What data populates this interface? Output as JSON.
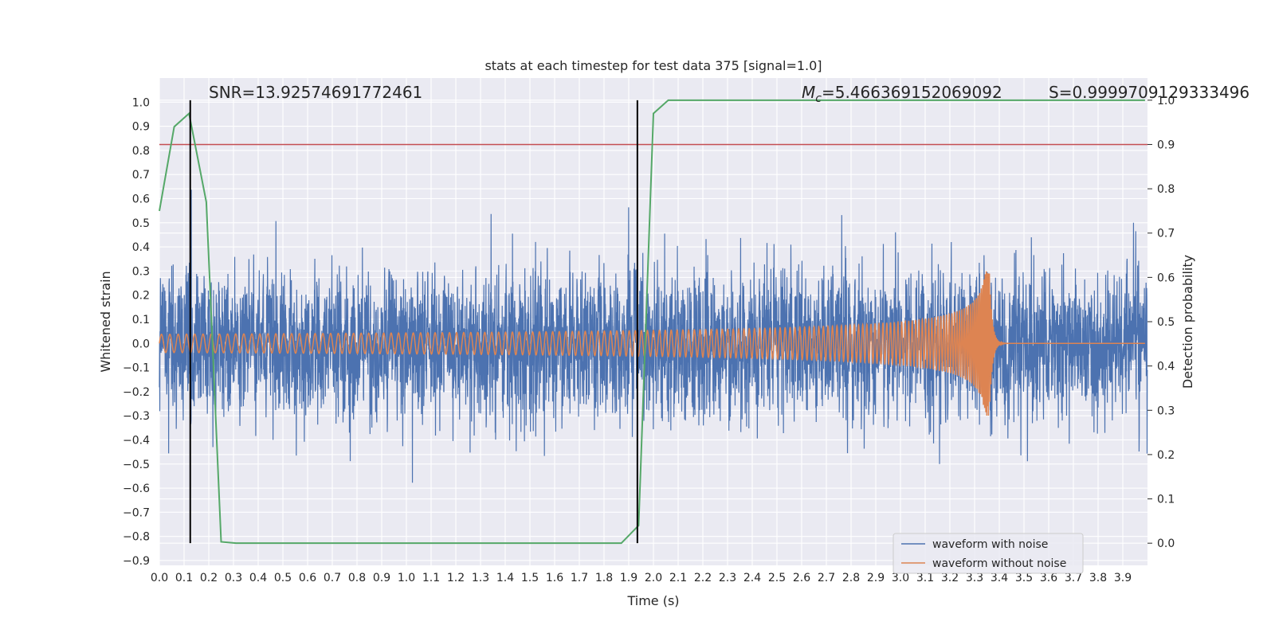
{
  "chart_data": {
    "type": "line",
    "title": "stats at each timestep for test data 375 [signal=1.0]",
    "xlabel": "Time (s)",
    "ylabel_left": "Whitened strain",
    "ylabel_right": "Detection probability",
    "xlim": [
      0.0,
      4.0
    ],
    "ylim_left": [
      -0.92,
      1.1
    ],
    "ylim_right": [
      -0.05,
      1.05
    ],
    "x_ticks": [
      "0.0",
      "0.1",
      "0.2",
      "0.3",
      "0.4",
      "0.5",
      "0.6",
      "0.7",
      "0.8",
      "0.9",
      "1.0",
      "1.1",
      "1.2",
      "1.3",
      "1.4",
      "1.5",
      "1.6",
      "1.7",
      "1.8",
      "1.9",
      "2.0",
      "2.1",
      "2.2",
      "2.3",
      "2.4",
      "2.5",
      "2.6",
      "2.7",
      "2.8",
      "2.9",
      "3.0",
      "3.1",
      "3.2",
      "3.3",
      "3.4",
      "3.5",
      "3.6",
      "3.7",
      "3.8",
      "3.9"
    ],
    "y_left_ticks": [
      "1.0",
      "0.9",
      "0.8",
      "0.7",
      "0.6",
      "0.5",
      "0.4",
      "0.3",
      "0.2",
      "0.1",
      "0.0",
      "−0.1",
      "−0.2",
      "−0.3",
      "−0.4",
      "−0.5",
      "−0.6",
      "−0.7",
      "−0.8",
      "−0.9"
    ],
    "y_right_ticks": [
      "1.0",
      "0.9",
      "0.8",
      "0.7",
      "0.6",
      "0.5",
      "0.4",
      "0.3",
      "0.2",
      "0.1",
      "0.0"
    ],
    "grid": true,
    "legend_position": "lower-right",
    "series": [
      {
        "name": "waveform with noise",
        "color": "#4c72b0",
        "axis": "left",
        "kind": "noise",
        "amplitude_envelope": 0.38,
        "duration": 4.0
      },
      {
        "name": "waveform without noise",
        "color": "#dd8452",
        "axis": "left",
        "kind": "chirp",
        "start_amplitude": 0.038,
        "peak_amplitude": 0.3,
        "merger_time": 3.36,
        "start_frequency": 30
      },
      {
        "name": "",
        "color": "#55a868",
        "axis": "right",
        "kind": "probability",
        "x": [
          0.0,
          0.06,
          0.12,
          0.19,
          0.25,
          0.31,
          1.87,
          1.94,
          2.0,
          2.06,
          3.99
        ],
        "y": [
          0.75,
          0.94,
          0.97,
          0.77,
          0.003,
          0.0,
          0.0,
          0.04,
          0.97,
          1.0,
          1.0
        ]
      }
    ],
    "hlines": [
      {
        "axis": "right",
        "y": 0.9,
        "color": "#c44e52"
      }
    ],
    "vlines": [
      {
        "x": 0.125,
        "color": "#000000"
      },
      {
        "x": 1.935,
        "color": "#000000"
      }
    ],
    "annotations": [
      {
        "name": "snr",
        "text": "SNR=13.92574691772461"
      },
      {
        "name": "mc",
        "prefix": "M",
        "sub": "c",
        "text": "=5.466369152069092"
      },
      {
        "name": "s",
        "text": "S=0.9999709129333496"
      }
    ]
  }
}
